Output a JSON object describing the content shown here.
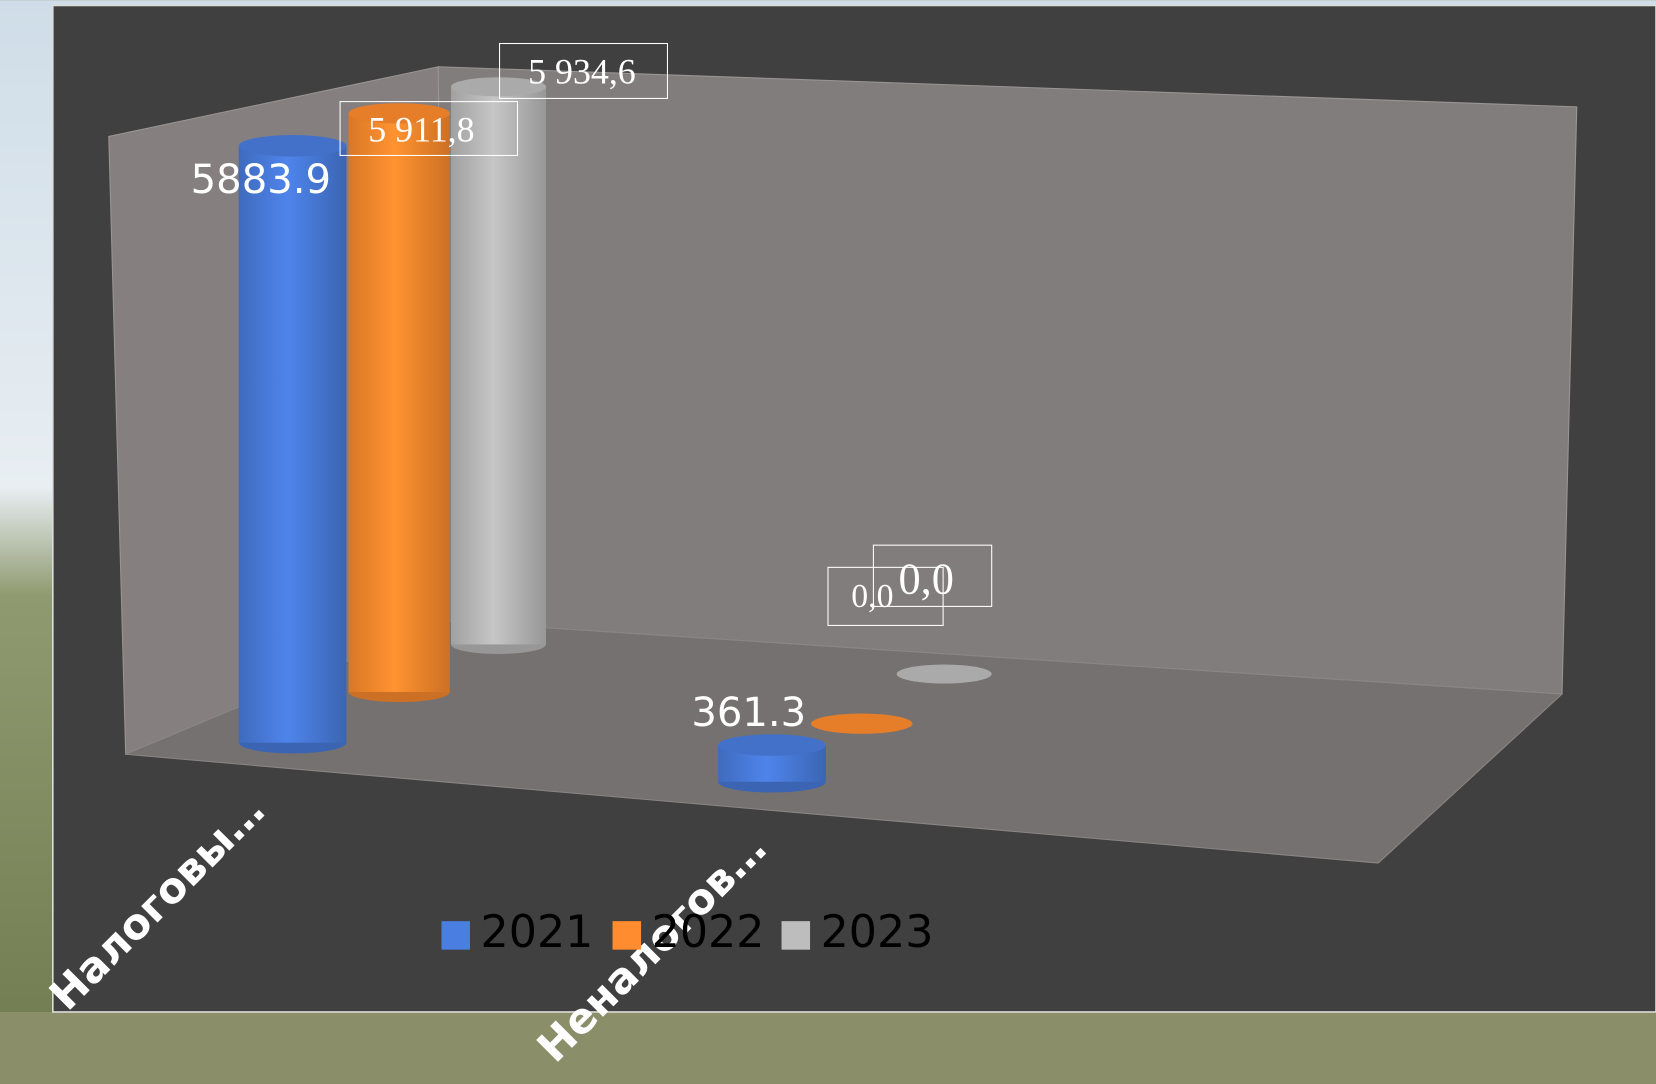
{
  "chart_data": {
    "type": "bar3d",
    "categories": [
      "Налоговы…",
      "Неналогов…"
    ],
    "series": [
      {
        "name": "2021",
        "color": "#4a7ee0",
        "values": [
          5883.9,
          361.3
        ],
        "value_labels": [
          "5883.9",
          "361.3"
        ]
      },
      {
        "name": "2022",
        "color": "#ff8c2e",
        "values": [
          5911.8,
          0.0
        ],
        "value_labels": [
          "5 911,8",
          "0,0"
        ]
      },
      {
        "name": "2023",
        "color": "#bdbdbd",
        "values": [
          5934.6,
          0.0
        ],
        "value_labels": [
          "5 934,6",
          "0,0"
        ]
      }
    ],
    "legend": "bottom"
  }
}
